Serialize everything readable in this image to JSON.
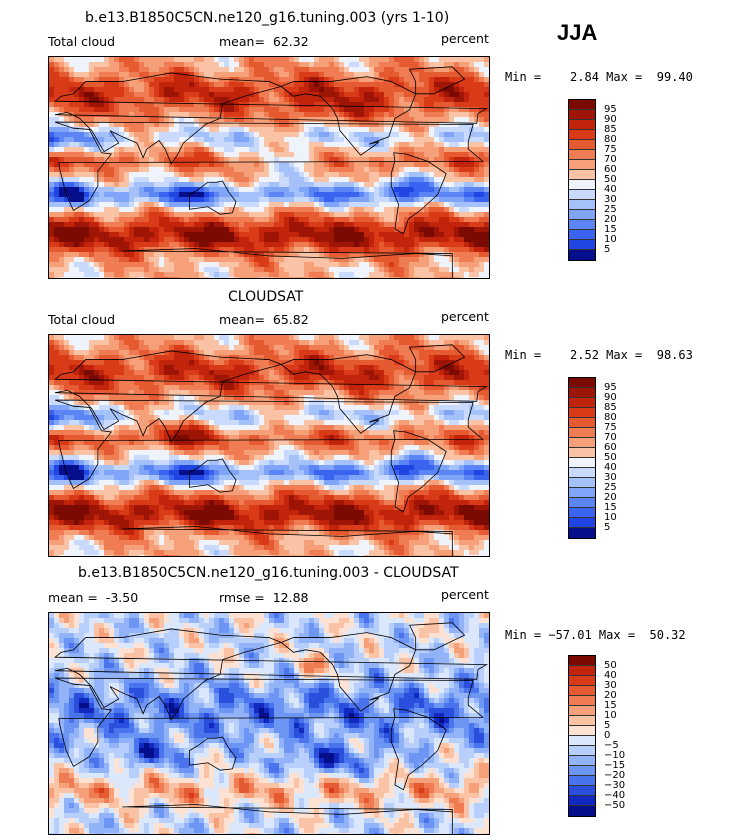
{
  "season": "JJA",
  "colors": {
    "levels_pos": [
      "#050f8c",
      "#1129bf",
      "#2045e2",
      "#3a64f0",
      "#5b84f5",
      "#80a4f7",
      "#a4c1fa",
      "#c9dafc",
      "#eef3fc",
      "#fde2d4",
      "#fbc3a5",
      "#f6a07a",
      "#ef7c52",
      "#e65a31",
      "#d93a18",
      "#c2230b",
      "#9e1405",
      "#7a0a02"
    ],
    "coast": "#000000"
  },
  "chart_data": [
    {
      "type": "heatmap",
      "title": "b.e13.B1850C5CN.ne120_g16.tuning.003 (yrs 1-10)",
      "left_label": "Total cloud",
      "center_label": "mean=  62.32",
      "units": "percent",
      "min": 2.84,
      "max": 99.4,
      "min_text": "Min =    2.84 Max =  99.40",
      "levels": [
        "95",
        "90",
        "85",
        "80",
        "75",
        "70",
        "60",
        "50",
        "40",
        "30",
        "25",
        "20",
        "15",
        "10",
        "5"
      ],
      "colors": [
        "#7a0a02",
        "#9e1405",
        "#c2230b",
        "#d93a18",
        "#e65a31",
        "#ef7c52",
        "#f6a07a",
        "#fbc3a5",
        "#eef3fc",
        "#c9dafc",
        "#a4c1fa",
        "#80a4f7",
        "#5b84f5",
        "#3a64f0",
        "#2045e2",
        "#050f8c"
      ]
    },
    {
      "type": "heatmap",
      "title": "CLOUDSAT",
      "left_label": "Total cloud",
      "center_label": "mean=  65.82",
      "units": "percent",
      "min": 2.52,
      "max": 98.63,
      "min_text": "Min =    2.52 Max =  98.63",
      "levels": [
        "95",
        "90",
        "85",
        "80",
        "75",
        "70",
        "60",
        "50",
        "40",
        "30",
        "25",
        "20",
        "15",
        "10",
        "5"
      ],
      "colors": [
        "#7a0a02",
        "#9e1405",
        "#c2230b",
        "#d93a18",
        "#e65a31",
        "#ef7c52",
        "#f6a07a",
        "#fbc3a5",
        "#eef3fc",
        "#c9dafc",
        "#a4c1fa",
        "#80a4f7",
        "#5b84f5",
        "#3a64f0",
        "#2045e2",
        "#050f8c"
      ]
    },
    {
      "type": "heatmap",
      "title": "b.e13.B1850C5CN.ne120_g16.tuning.003 - CLOUDSAT",
      "left_label": "mean =  -3.50",
      "center_label": "rmse =  12.88",
      "units": "percent",
      "min": -57.01,
      "max": 50.32,
      "min_text": "Min = −57.01 Max =  50.32",
      "levels": [
        "50",
        "40",
        "30",
        "20",
        "15",
        "10",
        "5",
        "0",
        "−5",
        "−10",
        "−15",
        "−20",
        "−30",
        "−40",
        "−50"
      ],
      "colors": [
        "#7a0a02",
        "#c2230b",
        "#d93a18",
        "#e65a31",
        "#ef7c52",
        "#f6a07a",
        "#fbc3a5",
        "#fde2d4",
        "#dbe7fb",
        "#b7cffa",
        "#92b3f8",
        "#6d95f4",
        "#4a73ee",
        "#2b4fdd",
        "#1129bf",
        "#050f8c"
      ]
    }
  ]
}
